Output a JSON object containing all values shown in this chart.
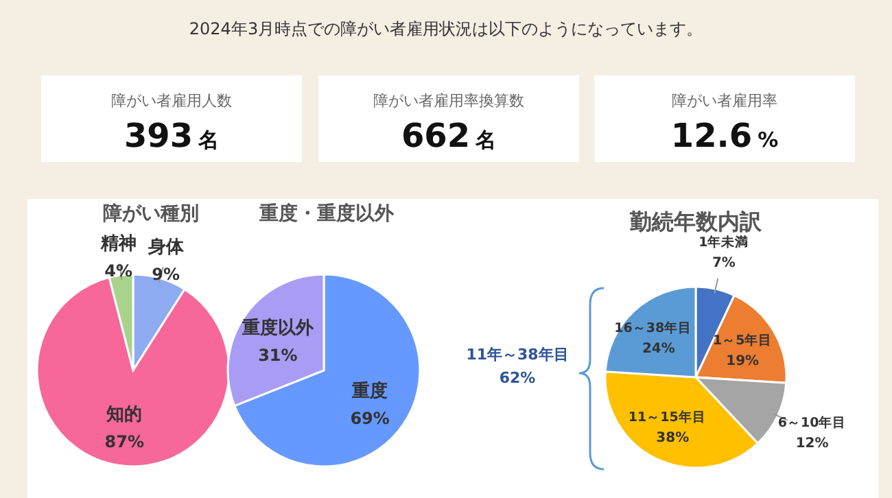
{
  "chart_data": [
    {
      "type": "other",
      "title": "2024年3月時点での障がい者雇用状況は以下のようになっています。",
      "categories": [
        "障がい者雇用人数",
        "障がい者雇用率換算数",
        "障がい者雇用率"
      ],
      "value_labels": [
        "393 名",
        "662 名",
        "12.6 %"
      ]
    },
    {
      "type": "pie",
      "title": "障がい種別",
      "categories": [
        "身体",
        "知的",
        "精神"
      ],
      "values": [
        9,
        87,
        4
      ],
      "colors": [
        "#8eaaf0",
        "#f7679a",
        "#a9d38c"
      ],
      "value_labels": [
        "9%",
        "87%",
        "4%"
      ]
    },
    {
      "type": "pie",
      "title": "重度・重度以外",
      "categories": [
        "重度",
        "重度以外"
      ],
      "values": [
        69,
        31
      ],
      "colors": [
        "#6699ff",
        "#a99cf5"
      ],
      "value_labels": [
        "69%",
        "31%"
      ]
    },
    {
      "type": "pie",
      "title": "勤続年数内訳",
      "categories": [
        "1年未満",
        "1～5年目",
        "6～10年目",
        "11～15年目",
        "16～38年目"
      ],
      "values": [
        7,
        19,
        12,
        38,
        24
      ],
      "colors": [
        "#4472c4",
        "#ed7d31",
        "#a5a5a5",
        "#ffc000",
        "#5b9bd5"
      ],
      "value_labels": [
        "7%",
        "19%",
        "12%",
        "38%",
        "24%"
      ],
      "annotations": [
        "11年～38年目 62%"
      ]
    }
  ]
}
